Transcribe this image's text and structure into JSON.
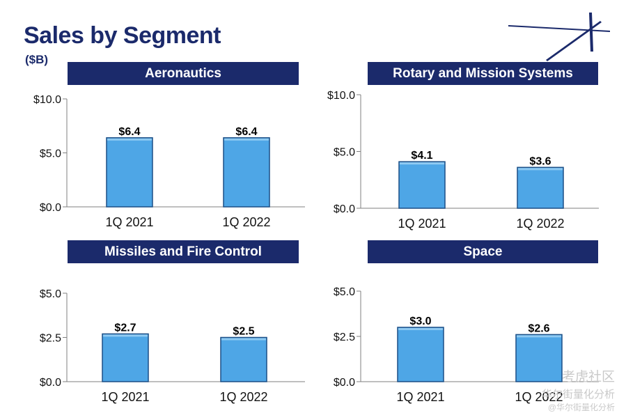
{
  "header": {
    "title": "Sales by Segment",
    "unit": "($B)"
  },
  "watermark": {
    "line1": "考虎社区",
    "line2": "华尔街量化分析",
    "line3": "@华尔街量化分析"
  },
  "colors": {
    "banner": "#1b2a6b",
    "bar": "#4ea6e6",
    "bar_edge": "#1c4f86",
    "title": "#1b2a6b"
  },
  "chart_data": [
    {
      "type": "bar",
      "title": "Aeronautics",
      "categories": [
        "1Q 2021",
        "1Q 2022"
      ],
      "values": [
        6.4,
        6.4
      ],
      "labels": [
        "$6.4",
        "$6.4"
      ],
      "yticks": [
        "$0.0",
        "$5.0",
        "$10.0"
      ],
      "ylim": [
        0,
        10
      ]
    },
    {
      "type": "bar",
      "title": "Rotary and Mission Systems",
      "categories": [
        "1Q 2021",
        "1Q 2022"
      ],
      "values": [
        4.1,
        3.6
      ],
      "labels": [
        "$4.1",
        "$3.6"
      ],
      "yticks": [
        "$0.0",
        "$5.0",
        "$10.0"
      ],
      "ylim": [
        0,
        10
      ]
    },
    {
      "type": "bar",
      "title": "Missiles and Fire Control",
      "categories": [
        "1Q 2021",
        "1Q 2022"
      ],
      "values": [
        2.7,
        2.5
      ],
      "labels": [
        "$2.7",
        "$2.5"
      ],
      "yticks": [
        "$0.0",
        "$2.5",
        "$5.0"
      ],
      "ylim": [
        0,
        5
      ]
    },
    {
      "type": "bar",
      "title": "Space",
      "categories": [
        "1Q 2021",
        "1Q 2022"
      ],
      "values": [
        3.0,
        2.6
      ],
      "labels": [
        "$3.0",
        "$2.6"
      ],
      "yticks": [
        "$0.0",
        "$2.5",
        "$5.0"
      ],
      "ylim": [
        0,
        5
      ]
    }
  ]
}
